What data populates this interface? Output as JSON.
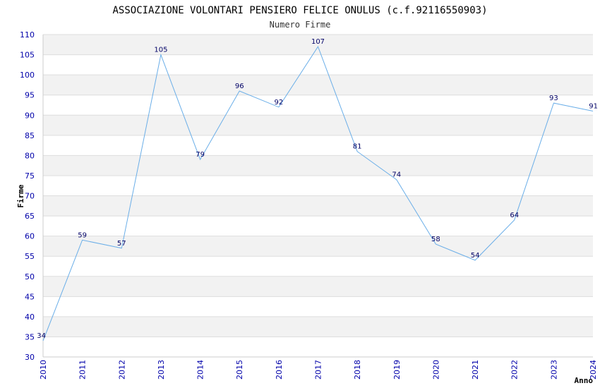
{
  "chart_data": {
    "type": "line",
    "title": "ASSOCIAZIONE VOLONTARI PENSIERO FELICE ONULUS (c.f.92116550903)",
    "subtitle": "Numero Firme",
    "xlabel": "Anno",
    "ylabel": "Firme",
    "x": [
      "2010",
      "2011",
      "2012",
      "2013",
      "2014",
      "2015",
      "2016",
      "2017",
      "2018",
      "2019",
      "2020",
      "2021",
      "2022",
      "2023",
      "2024"
    ],
    "series": [
      {
        "name": "Firme",
        "values": [
          34,
          59,
          57,
          105,
          79,
          96,
          92,
          107,
          81,
          74,
          58,
          54,
          64,
          93,
          91
        ]
      }
    ],
    "ylim": [
      30,
      110
    ],
    "yticks": [
      "30",
      "35",
      "40",
      "45",
      "50",
      "55",
      "60",
      "65",
      "70",
      "75",
      "80",
      "85",
      "90",
      "95",
      "100",
      "105",
      "110"
    ],
    "grid": true,
    "colors": {
      "line": "#6aaee8",
      "band": "#f2f2f2",
      "grid": "#dddddd",
      "tick": "#0000aa",
      "label": "#000066"
    }
  }
}
